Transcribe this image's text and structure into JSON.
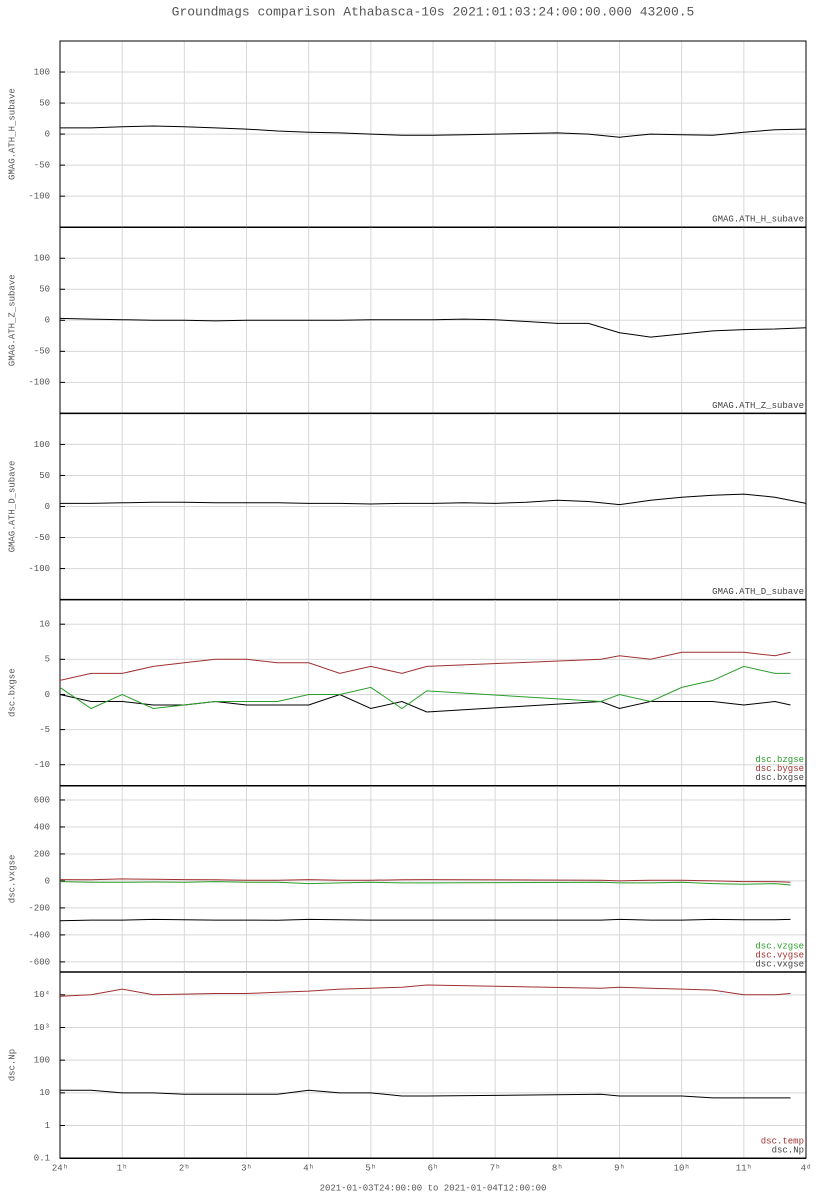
{
  "title": "Groundmags comparison Athabasca-10s 2021:01:03:24:00:00.000 43200.5",
  "xlabel": "2021-01-03T24:00:00 to 2021-01-04T12:00:00",
  "chart_data": [
    {
      "type": "line",
      "ylabel": "GMAG.ATH_H_subave",
      "xlim": [
        0,
        12
      ],
      "ylim": [
        -150,
        150
      ],
      "yticks": [
        -100,
        -50,
        0,
        50,
        100
      ],
      "grid": true,
      "x": [
        0,
        0.5,
        1,
        1.5,
        2,
        2.5,
        3,
        3.5,
        4,
        4.5,
        5,
        5.5,
        6,
        6.5,
        7,
        7.5,
        8,
        8.5,
        9,
        9.5,
        10,
        10.5,
        11,
        11.5,
        12
      ],
      "series": [
        {
          "name": "GMAG.ATH_H_subave",
          "color": "#000000",
          "values": [
            10,
            10,
            12,
            13,
            12,
            10,
            8,
            5,
            3,
            2,
            0,
            -2,
            -2,
            -1,
            0,
            1,
            2,
            0,
            -5,
            0,
            -1,
            -2,
            3,
            7,
            8
          ]
        }
      ]
    },
    {
      "type": "line",
      "ylabel": "GMAG.ATH_Z_subave",
      "xlim": [
        0,
        12
      ],
      "ylim": [
        -150,
        150
      ],
      "yticks": [
        -100,
        -50,
        0,
        50,
        100
      ],
      "grid": true,
      "x": [
        0,
        0.5,
        1,
        1.5,
        2,
        2.5,
        3,
        3.5,
        4,
        4.5,
        5,
        5.5,
        6,
        6.5,
        7,
        7.5,
        8,
        8.5,
        9,
        9.5,
        10,
        10.5,
        11,
        11.5,
        12
      ],
      "series": [
        {
          "name": "GMAG.ATH_Z_subave",
          "color": "#000000",
          "values": [
            3,
            2,
            1,
            0,
            0,
            -1,
            0,
            0,
            0,
            0,
            1,
            1,
            1,
            2,
            1,
            -2,
            -5,
            -5,
            -20,
            -27,
            -22,
            -17,
            -15,
            -14,
            -12
          ]
        }
      ]
    },
    {
      "type": "line",
      "ylabel": "GMAG.ATH_D_subave",
      "xlim": [
        0,
        12
      ],
      "ylim": [
        -150,
        150
      ],
      "yticks": [
        -100,
        -50,
        0,
        50,
        100
      ],
      "grid": true,
      "x": [
        0,
        0.5,
        1,
        1.5,
        2,
        2.5,
        3,
        3.5,
        4,
        4.5,
        5,
        5.5,
        6,
        6.5,
        7,
        7.5,
        8,
        8.5,
        9,
        9.5,
        10,
        10.5,
        11,
        11.5,
        12
      ],
      "series": [
        {
          "name": "GMAG.ATH_D_subave",
          "color": "#000000",
          "values": [
            5,
            5,
            6,
            7,
            7,
            6,
            6,
            6,
            5,
            5,
            4,
            5,
            5,
            6,
            5,
            7,
            10,
            8,
            3,
            10,
            15,
            18,
            20,
            15,
            5
          ]
        }
      ]
    },
    {
      "type": "line",
      "ylabel": "dsc.bxgse",
      "xlim": [
        0,
        12
      ],
      "ylim": [
        -13,
        13.5
      ],
      "yticks": [
        -10,
        -5,
        0,
        5,
        10
      ],
      "grid": true,
      "x": [
        0,
        0.5,
        1,
        1.5,
        2,
        2.5,
        3,
        3.5,
        4,
        4.5,
        5,
        5.5,
        5.9,
        8.7,
        9,
        9.5,
        10,
        10.5,
        11,
        11.5,
        11.75
      ],
      "series": [
        {
          "name": "dsc.bxgse",
          "color": "#000000",
          "values": [
            0,
            -1,
            -1,
            -1.5,
            -1.5,
            -1,
            -1.5,
            -1.5,
            -1.5,
            0,
            -2,
            -1,
            -2.5,
            -1,
            -2,
            -1,
            -1,
            -1,
            -1.5,
            -1,
            -1.5
          ]
        },
        {
          "name": "dsc.bygse",
          "color": "#a03030",
          "values": [
            2,
            3,
            3,
            4,
            4.5,
            5,
            5,
            4.5,
            4.5,
            3,
            4,
            3,
            4,
            5,
            5.5,
            5,
            6,
            6,
            6,
            5.5,
            6
          ]
        },
        {
          "name": "dsc.bzgse",
          "color": "#2a9d2a",
          "values": [
            1,
            -2,
            0,
            -2,
            -1.5,
            -1,
            -1,
            -1,
            0,
            0,
            1,
            -2,
            0.5,
            -1,
            0,
            -1,
            1,
            2,
            4,
            3,
            3
          ]
        }
      ]
    },
    {
      "type": "line",
      "ylabel": "dsc.vxgse",
      "xlim": [
        0,
        12
      ],
      "ylim": [
        -675,
        705
      ],
      "yticks": [
        -600,
        -400,
        -200,
        0,
        200,
        400,
        600
      ],
      "grid": true,
      "x": [
        0,
        0.5,
        1,
        1.5,
        2,
        2.5,
        3,
        3.5,
        4,
        4.5,
        5,
        5.5,
        5.9,
        8.7,
        9,
        9.5,
        10,
        10.5,
        11,
        11.5,
        11.75
      ],
      "series": [
        {
          "name": "dsc.vxgse",
          "color": "#000000",
          "values": [
            -295,
            -290,
            -290,
            -285,
            -288,
            -290,
            -290,
            -292,
            -285,
            -288,
            -290,
            -290,
            -290,
            -290,
            -285,
            -290,
            -290,
            -285,
            -288,
            -288,
            -285
          ]
        },
        {
          "name": "dsc.vygse",
          "color": "#a03030",
          "values": [
            10,
            8,
            15,
            12,
            10,
            8,
            5,
            5,
            10,
            5,
            5,
            8,
            10,
            5,
            0,
            5,
            5,
            0,
            -5,
            -5,
            -10
          ]
        },
        {
          "name": "dsc.vzgse",
          "color": "#2a9d2a",
          "values": [
            -5,
            -10,
            -10,
            -8,
            -10,
            -5,
            -10,
            -10,
            -20,
            -15,
            -10,
            -15,
            -15,
            -10,
            -15,
            -15,
            -10,
            -20,
            -25,
            -20,
            -30
          ]
        }
      ]
    },
    {
      "type": "line",
      "ylabel": "dsc.Np",
      "log_y": true,
      "xlim": [
        0,
        12
      ],
      "ylim": [
        0.1,
        50000
      ],
      "yticks": [
        0.1,
        1,
        10,
        100,
        {
          "value": 1000,
          "label": "10³"
        },
        {
          "value": 10000,
          "label": "10⁴"
        }
      ],
      "grid": true,
      "xticks": [
        {
          "value": 0,
          "label": "24ʰ"
        },
        {
          "value": 1,
          "label": "1ʰ"
        },
        {
          "value": 2,
          "label": "2ʰ"
        },
        {
          "value": 3,
          "label": "3ʰ"
        },
        {
          "value": 4,
          "label": "4ʰ"
        },
        {
          "value": 5,
          "label": "5ʰ"
        },
        {
          "value": 6,
          "label": "6ʰ"
        },
        {
          "value": 7,
          "label": "7ʰ"
        },
        {
          "value": 8,
          "label": "8ʰ"
        },
        {
          "value": 9,
          "label": "9ʰ"
        },
        {
          "value": 10,
          "label": "10ʰ"
        },
        {
          "value": 11,
          "label": "11ʰ"
        },
        {
          "value": 12,
          "label": "4ᵈ"
        }
      ],
      "x": [
        0,
        0.5,
        1,
        1.5,
        2,
        2.5,
        3,
        3.5,
        4,
        4.5,
        5,
        5.5,
        5.9,
        8.7,
        9,
        9.5,
        10,
        10.5,
        11,
        11.5,
        11.75
      ],
      "series": [
        {
          "name": "dsc.Np",
          "color": "#000000",
          "values": [
            12,
            12,
            10,
            10,
            9,
            9,
            9,
            9,
            12,
            10,
            10,
            8,
            8,
            9,
            8,
            8,
            8,
            7,
            7,
            7,
            7
          ]
        },
        {
          "name": "dsc.temp",
          "color": "#a03030",
          "values": [
            9000,
            10000,
            15000,
            10000,
            10500,
            11000,
            11000,
            12000,
            13000,
            15000,
            16000,
            17000,
            20000,
            16000,
            17000,
            16000,
            15000,
            14000,
            10000,
            10000,
            11000
          ]
        }
      ]
    }
  ]
}
